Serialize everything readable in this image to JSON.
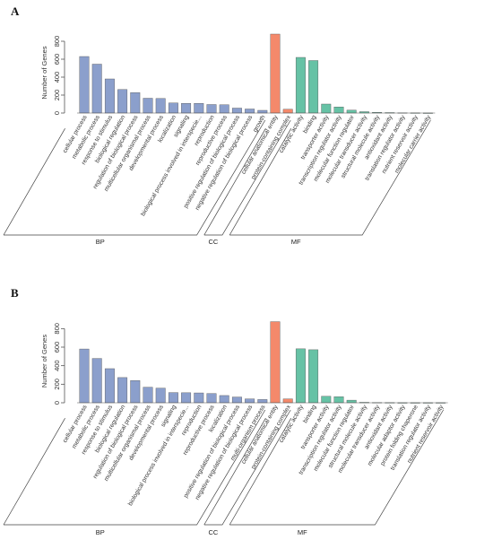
{
  "colors": {
    "BP": "#8b9fcc",
    "CC": "#f4896b",
    "MF": "#66c2a5",
    "axis": "#555555",
    "text": "#333333"
  },
  "chart_data": [
    {
      "type": "bar",
      "panel_label": "A",
      "ylabel": "Number of Genes",
      "ylim": [
        0,
        900
      ],
      "yticks": [
        0,
        200,
        400,
        600,
        800
      ],
      "grid": false,
      "groups": [
        {
          "name": "BP",
          "categories": [
            "cellular process",
            "metabolic process",
            "response to stimulus",
            "biological regulation",
            "regulation of biological process",
            "multicellular organismal process",
            "developmental process",
            "localization",
            "signaling",
            "biological process involved in interspecie...",
            "reproduction",
            "reproductive process",
            "positive regulation of biological process",
            "negative regulation of biological process",
            "growth"
          ],
          "values": [
            630,
            545,
            380,
            262,
            228,
            165,
            162,
            112,
            108,
            108,
            95,
            92,
            55,
            45,
            30
          ]
        },
        {
          "name": "CC",
          "categories": [
            "cellular anatomical entity",
            "protein-containing complex"
          ],
          "values": [
            880,
            42
          ]
        },
        {
          "name": "MF",
          "categories": [
            "catalytic activity",
            "binding",
            "transporter activity",
            "transcription regulator activity",
            "molecular function regulator",
            "molecular transducer activity",
            "structural molecule activity",
            "antioxidant activity",
            "translation regulator activity",
            "nutrient reservoir activity",
            "molecular carrier activity"
          ],
          "values": [
            620,
            585,
            100,
            68,
            32,
            15,
            8,
            5,
            3,
            2,
            1
          ]
        }
      ]
    },
    {
      "type": "bar",
      "panel_label": "B",
      "ylabel": "Number of Genes",
      "ylim": [
        0,
        900
      ],
      "yticks": [
        0,
        200,
        400,
        600,
        800
      ],
      "grid": false,
      "groups": [
        {
          "name": "BP",
          "categories": [
            "cellular process",
            "metabolic process",
            "response to stimulus",
            "biological regulation",
            "regulation of biological process",
            "multicellular organismal process",
            "developmental process",
            "signaling",
            "biological process involved in interspecie...",
            "reproduction",
            "reproductive process",
            "localization",
            "positive regulation of biological process",
            "negative regulation of biological process",
            "multi-organism process"
          ],
          "values": [
            580,
            478,
            368,
            272,
            240,
            168,
            158,
            110,
            108,
            106,
            100,
            78,
            62,
            42,
            35
          ]
        },
        {
          "name": "CC",
          "categories": [
            "cellular anatomical entity",
            "protein-containing complex"
          ],
          "values": [
            875,
            42
          ]
        },
        {
          "name": "MF",
          "categories": [
            "catalytic activity",
            "binding",
            "transporter activity",
            "transcription regulator activity",
            "molecular function regulator",
            "structural molecule activity",
            "molecular transducer activity",
            "antioxidant activity",
            "molecular adaptor activity",
            "protein folding chaperone",
            "translation regulator activity",
            "nutrient reservoir activity"
          ],
          "values": [
            582,
            572,
            70,
            65,
            28,
            5,
            3,
            2,
            1,
            1,
            1,
            1
          ]
        }
      ]
    }
  ]
}
